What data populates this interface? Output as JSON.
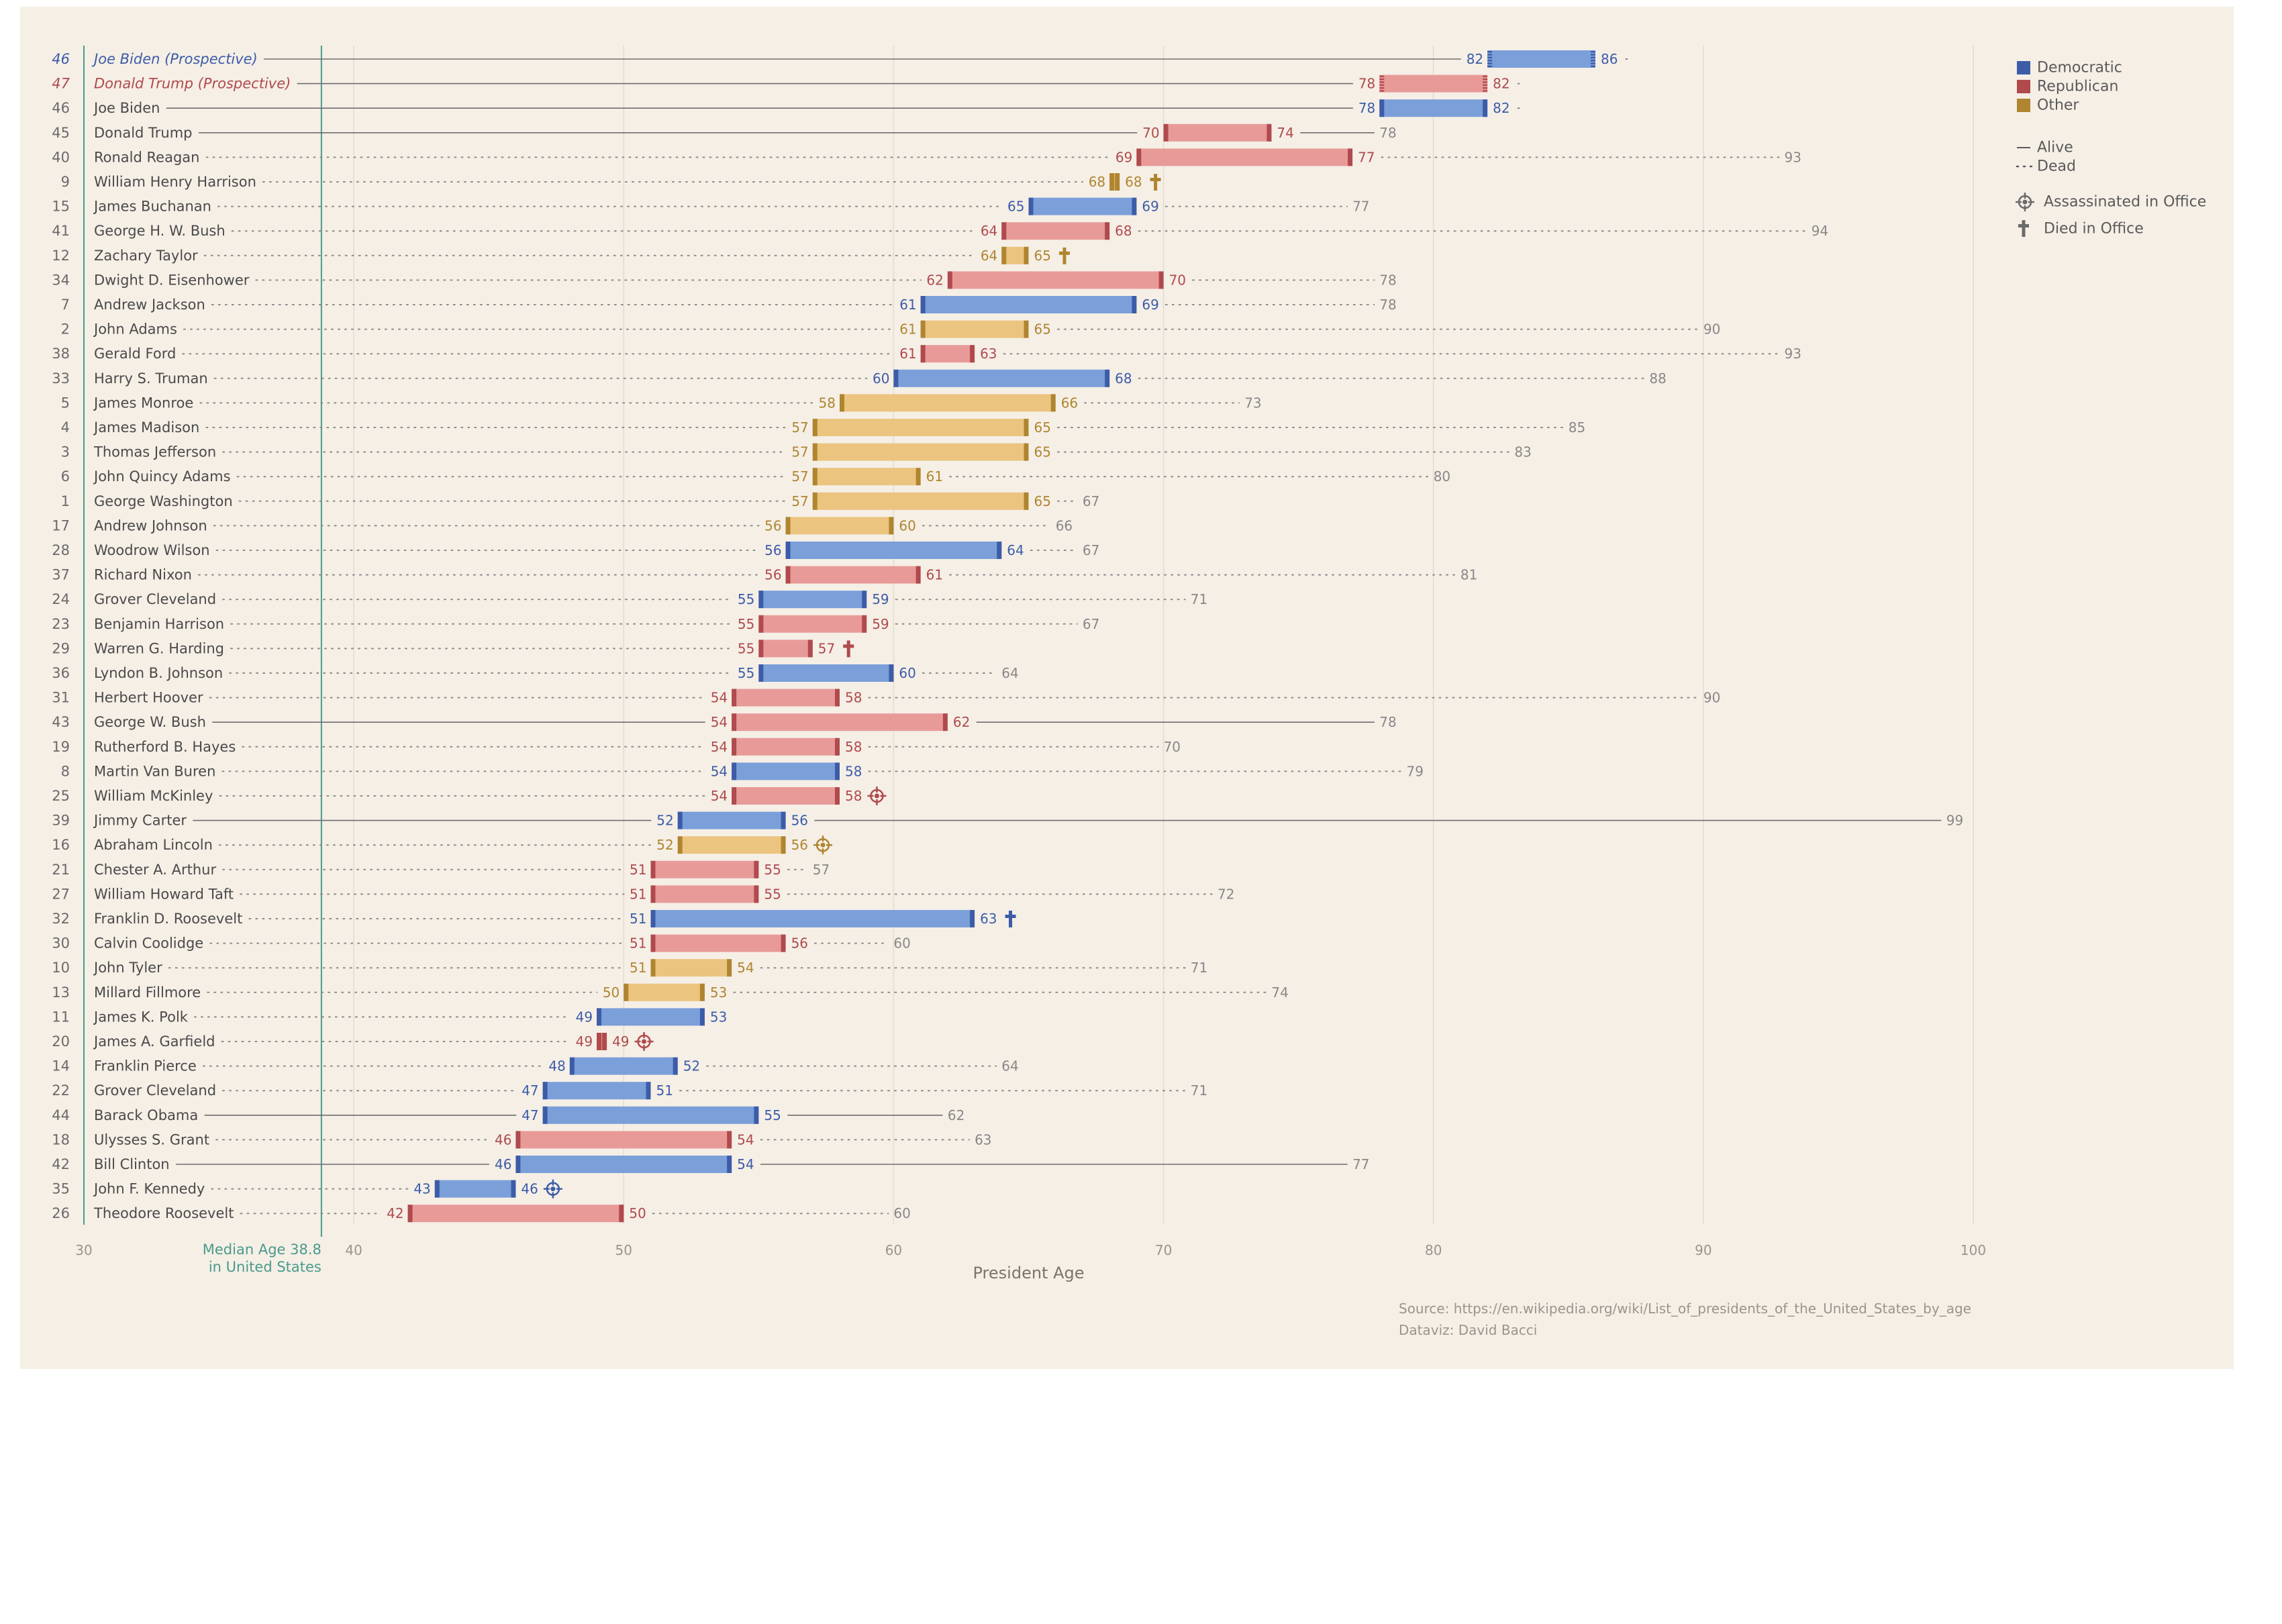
{
  "chart_data": {
    "type": "bar",
    "xlabel": "President Age",
    "xlim": [
      30,
      100
    ],
    "xticks": [
      30,
      40,
      50,
      60,
      70,
      80,
      90,
      100
    ],
    "grid": true,
    "median": {
      "value": 38.8,
      "label_line1": "Median Age 38.8",
      "label_line2": "in United States"
    },
    "legend": {
      "placement": "top-right",
      "party_entries": [
        {
          "key": "D",
          "label": "Democratic"
        },
        {
          "key": "R",
          "label": "Republican"
        },
        {
          "key": "O",
          "label": "Other"
        }
      ],
      "status_entries": [
        {
          "key": "alive",
          "label": "Alive"
        },
        {
          "key": "dead",
          "label": "Dead"
        }
      ],
      "event_entries": [
        {
          "key": "assassinated",
          "label": "Assassinated in Office"
        },
        {
          "key": "died",
          "label": "Died in Office"
        }
      ]
    },
    "colors": {
      "D": {
        "bar": "#7b9fd9",
        "cap": "#3d5ca8",
        "text": "#3d5ca8"
      },
      "R": {
        "bar": "#e89a99",
        "cap": "#b04a4d",
        "text": "#b04a4d"
      },
      "O": {
        "bar": "#ebc47f",
        "cap": "#b08530",
        "text": "#b08530"
      },
      "median": "#4a9a8c",
      "line": "#6e6e6e",
      "label": "#4a4a4a",
      "number": "#888888"
    },
    "rows": [
      {
        "n": "46",
        "name": "Joe Biden (Prospective)",
        "party": "D",
        "start": 82,
        "end": 86,
        "life": 86,
        "alive": true,
        "prospective": true
      },
      {
        "n": "47",
        "name": "Donald Trump (Prospective)",
        "party": "R",
        "start": 78,
        "end": 82,
        "life": 82,
        "alive": true,
        "prospective": true
      },
      {
        "n": "46",
        "name": "Joe Biden",
        "party": "D",
        "start": 78,
        "end": 82,
        "life": 82,
        "alive": true
      },
      {
        "n": "45",
        "name": "Donald Trump",
        "party": "R",
        "start": 70,
        "end": 74,
        "life": 78,
        "alive": true
      },
      {
        "n": "40",
        "name": "Ronald Reagan",
        "party": "R",
        "start": 69,
        "end": 77,
        "life": 93
      },
      {
        "n": "9",
        "name": "William Henry Harrison",
        "party": "O",
        "start": 68,
        "end": 68,
        "life": 68,
        "event": "died"
      },
      {
        "n": "15",
        "name": "James Buchanan",
        "party": "D",
        "start": 65,
        "end": 69,
        "life": 77
      },
      {
        "n": "41",
        "name": "George H. W. Bush",
        "party": "R",
        "start": 64,
        "end": 68,
        "life": 94
      },
      {
        "n": "12",
        "name": "Zachary Taylor",
        "party": "O",
        "start": 64,
        "end": 65,
        "life": 65,
        "event": "died"
      },
      {
        "n": "34",
        "name": "Dwight D. Eisenhower",
        "party": "R",
        "start": 62,
        "end": 70,
        "life": 78
      },
      {
        "n": "7",
        "name": "Andrew Jackson",
        "party": "D",
        "start": 61,
        "end": 69,
        "life": 78
      },
      {
        "n": "2",
        "name": "John Adams",
        "party": "O",
        "start": 61,
        "end": 65,
        "life": 90
      },
      {
        "n": "38",
        "name": "Gerald Ford",
        "party": "R",
        "start": 61,
        "end": 63,
        "life": 93
      },
      {
        "n": "33",
        "name": "Harry S. Truman",
        "party": "D",
        "start": 60,
        "end": 68,
        "life": 88
      },
      {
        "n": "5",
        "name": "James Monroe",
        "party": "O",
        "start": 58,
        "end": 66,
        "life": 73
      },
      {
        "n": "4",
        "name": "James Madison",
        "party": "O",
        "start": 57,
        "end": 65,
        "life": 85
      },
      {
        "n": "3",
        "name": "Thomas Jefferson",
        "party": "O",
        "start": 57,
        "end": 65,
        "life": 83
      },
      {
        "n": "6",
        "name": "John Quincy Adams",
        "party": "O",
        "start": 57,
        "end": 61,
        "life": 80
      },
      {
        "n": "1",
        "name": "George Washington",
        "party": "O",
        "start": 57,
        "end": 65,
        "life": 67
      },
      {
        "n": "17",
        "name": "Andrew Johnson",
        "party": "O",
        "start": 56,
        "end": 60,
        "life": 66
      },
      {
        "n": "28",
        "name": "Woodrow Wilson",
        "party": "D",
        "start": 56,
        "end": 64,
        "life": 67
      },
      {
        "n": "37",
        "name": "Richard Nixon",
        "party": "R",
        "start": 56,
        "end": 61,
        "life": 81
      },
      {
        "n": "24",
        "name": "Grover Cleveland",
        "party": "D",
        "start": 55,
        "end": 59,
        "life": 71
      },
      {
        "n": "23",
        "name": "Benjamin Harrison",
        "party": "R",
        "start": 55,
        "end": 59,
        "life": 67
      },
      {
        "n": "29",
        "name": "Warren G. Harding",
        "party": "R",
        "start": 55,
        "end": 57,
        "life": 57,
        "event": "died"
      },
      {
        "n": "36",
        "name": "Lyndon B. Johnson",
        "party": "D",
        "start": 55,
        "end": 60,
        "life": 64
      },
      {
        "n": "31",
        "name": "Herbert Hoover",
        "party": "R",
        "start": 54,
        "end": 58,
        "life": 90
      },
      {
        "n": "43",
        "name": "George W. Bush",
        "party": "R",
        "start": 54,
        "end": 62,
        "life": 78,
        "alive": true
      },
      {
        "n": "19",
        "name": "Rutherford B. Hayes",
        "party": "R",
        "start": 54,
        "end": 58,
        "life": 70
      },
      {
        "n": "8",
        "name": "Martin Van Buren",
        "party": "D",
        "start": 54,
        "end": 58,
        "life": 79
      },
      {
        "n": "25",
        "name": "William McKinley",
        "party": "R",
        "start": 54,
        "end": 58,
        "life": 58,
        "event": "assassinated"
      },
      {
        "n": "39",
        "name": "Jimmy Carter",
        "party": "D",
        "start": 52,
        "end": 56,
        "life": 99,
        "alive": true
      },
      {
        "n": "16",
        "name": "Abraham Lincoln",
        "party": "O",
        "start": 52,
        "end": 56,
        "life": 56,
        "event": "assassinated"
      },
      {
        "n": "21",
        "name": "Chester A. Arthur",
        "party": "R",
        "start": 51,
        "end": 55,
        "life": 57
      },
      {
        "n": "27",
        "name": "William Howard Taft",
        "party": "R",
        "start": 51,
        "end": 55,
        "life": 72
      },
      {
        "n": "32",
        "name": "Franklin D. Roosevelt",
        "party": "D",
        "start": 51,
        "end": 63,
        "life": 63,
        "event": "died"
      },
      {
        "n": "30",
        "name": "Calvin Coolidge",
        "party": "R",
        "start": 51,
        "end": 56,
        "life": 60
      },
      {
        "n": "10",
        "name": "John Tyler",
        "party": "O",
        "start": 51,
        "end": 54,
        "life": 71
      },
      {
        "n": "13",
        "name": "Millard Fillmore",
        "party": "O",
        "start": 50,
        "end": 53,
        "life": 74
      },
      {
        "n": "11",
        "name": "James K. Polk",
        "party": "D",
        "start": 49,
        "end": 53,
        "life": 53
      },
      {
        "n": "20",
        "name": "James A. Garfield",
        "party": "R",
        "start": 49,
        "end": 49,
        "life": 49,
        "event": "assassinated"
      },
      {
        "n": "14",
        "name": "Franklin Pierce",
        "party": "D",
        "start": 48,
        "end": 52,
        "life": 64
      },
      {
        "n": "22",
        "name": "Grover Cleveland",
        "party": "D",
        "start": 47,
        "end": 51,
        "life": 71
      },
      {
        "n": "44",
        "name": "Barack Obama",
        "party": "D",
        "start": 47,
        "end": 55,
        "life": 62,
        "alive": true
      },
      {
        "n": "18",
        "name": "Ulysses S. Grant",
        "party": "R",
        "start": 46,
        "end": 54,
        "life": 63
      },
      {
        "n": "42",
        "name": "Bill Clinton",
        "party": "D",
        "start": 46,
        "end": 54,
        "life": 77,
        "alive": true
      },
      {
        "n": "35",
        "name": "John F. Kennedy",
        "party": "D",
        "start": 43,
        "end": 46,
        "life": 46,
        "event": "assassinated"
      },
      {
        "n": "26",
        "name": "Theodore Roosevelt",
        "party": "R",
        "start": 42,
        "end": 50,
        "life": 60
      }
    ]
  },
  "source": {
    "line1": "Source: https://en.wikipedia.org/wiki/List_of_presidents_of_the_United_States_by_age",
    "line2": "Dataviz: David Bacci"
  }
}
